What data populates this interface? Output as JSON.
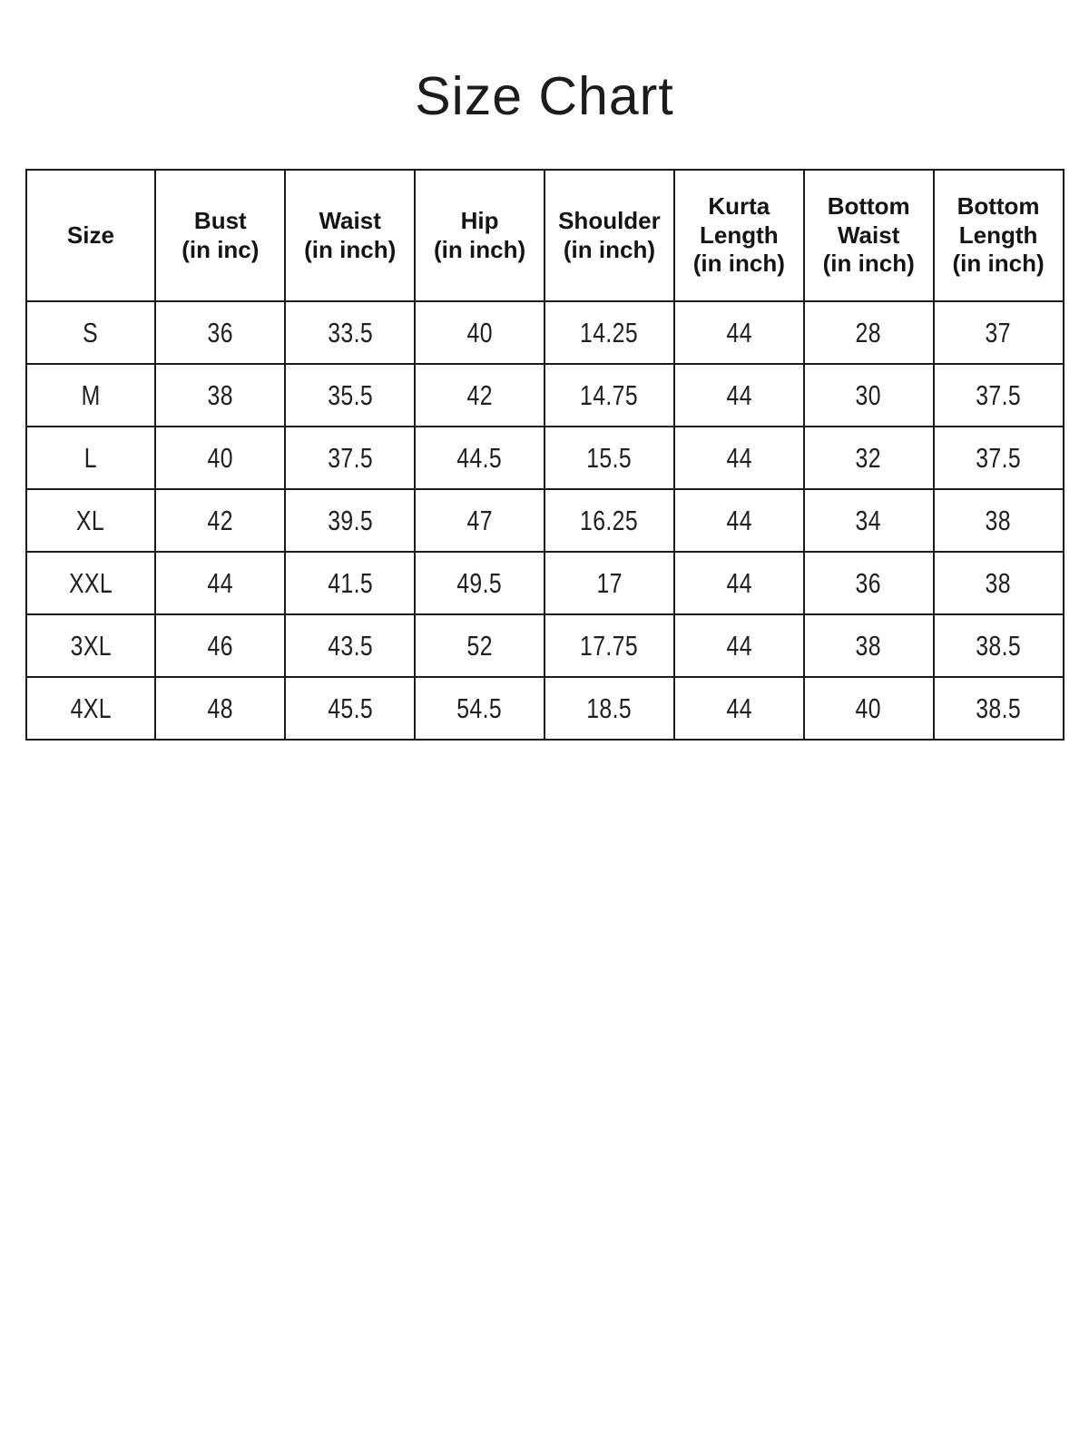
{
  "page": {
    "title": "Size Chart",
    "background_color": "#ffffff",
    "title_color": "#1c1c1c",
    "border_color": "#1b1b1b"
  },
  "table": {
    "columns": [
      {
        "id": "size",
        "lines": [
          "Size"
        ]
      },
      {
        "id": "bust",
        "lines": [
          "Bust",
          "(in inc)"
        ]
      },
      {
        "id": "waist",
        "lines": [
          "Waist",
          "(in inch)"
        ]
      },
      {
        "id": "hip",
        "lines": [
          "Hip",
          "(in inch)"
        ]
      },
      {
        "id": "shoulder",
        "lines": [
          "Shoulder",
          "(in inch)"
        ]
      },
      {
        "id": "kurta-length",
        "lines": [
          "Kurta",
          "Length",
          "(in inch)"
        ]
      },
      {
        "id": "bottom-waist",
        "lines": [
          "Bottom",
          "Waist",
          "(in inch)"
        ]
      },
      {
        "id": "bottom-length",
        "lines": [
          "Bottom",
          "Length",
          "(in inch)"
        ]
      }
    ],
    "rows": [
      {
        "size": "S",
        "values": [
          "36",
          "33.5",
          "40",
          "14.25",
          "44",
          "28",
          "37"
        ]
      },
      {
        "size": "M",
        "values": [
          "38",
          "35.5",
          "42",
          "14.75",
          "44",
          "30",
          "37.5"
        ]
      },
      {
        "size": "L",
        "values": [
          "40",
          "37.5",
          "44.5",
          "15.5",
          "44",
          "32",
          "37.5"
        ]
      },
      {
        "size": "XL",
        "values": [
          "42",
          "39.5",
          "47",
          "16.25",
          "44",
          "34",
          "38"
        ]
      },
      {
        "size": "XXL",
        "values": [
          "44",
          "41.5",
          "49.5",
          "17",
          "44",
          "36",
          "38"
        ]
      },
      {
        "size": "3XL",
        "values": [
          "46",
          "43.5",
          "52",
          "17.75",
          "44",
          "38",
          "38.5"
        ]
      },
      {
        "size": "4XL",
        "values": [
          "48",
          "45.5",
          "54.5",
          "18.5",
          "44",
          "40",
          "38.5"
        ]
      }
    ]
  }
}
